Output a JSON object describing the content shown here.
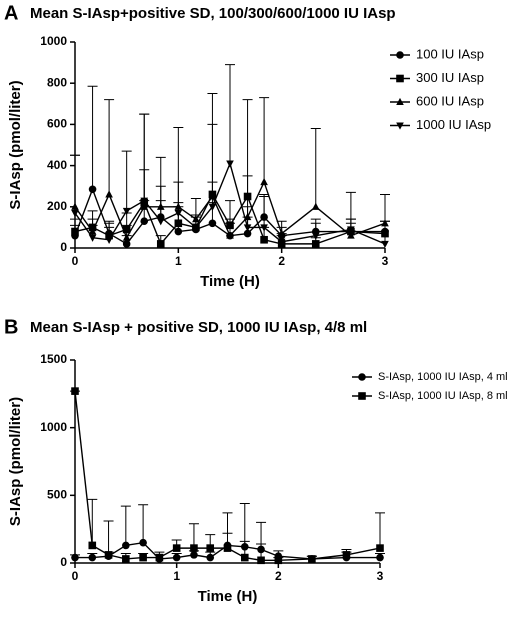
{
  "chart_data": [
    {
      "type": "line",
      "panel_label": "A",
      "title": "Mean S-IAsp+positive SD, 100/300/600/1000 IU IAsp",
      "x_label": "Time (H)",
      "y_label": "S-IAsp (pmol/liter)",
      "x": [
        0,
        0.17,
        0.33,
        0.5,
        0.67,
        0.83,
        1,
        1.17,
        1.33,
        1.5,
        1.67,
        1.83,
        2,
        2.33,
        2.67,
        3
      ],
      "xlim": [
        0,
        3
      ],
      "xticks": [
        0,
        1,
        2,
        3
      ],
      "ylim": [
        0,
        1000
      ],
      "yticks": [
        0,
        200,
        400,
        600,
        800,
        1000
      ],
      "series": [
        {
          "name": "100 IU IAsp",
          "color": "#000000",
          "marker": "circle",
          "values": [
            60,
            285,
            70,
            20,
            130,
            150,
            80,
            90,
            120,
            60,
            70,
            150,
            60,
            80,
            80,
            80
          ],
          "errors": [
            50,
            500,
            60,
            40,
            100,
            150,
            120,
            60,
            100,
            60,
            80,
            100,
            40,
            60,
            60,
            50
          ]
        },
        {
          "name": "300 IU IAsp",
          "color": "#000000",
          "marker": "square",
          "values": [
            80,
            100,
            60,
            90,
            220,
            20,
            120,
            100,
            260,
            110,
            250,
            40,
            20,
            20,
            80,
            70
          ],
          "errors": [
            60,
            80,
            60,
            80,
            430,
            40,
            100,
            60,
            490,
            120,
            470,
            60,
            40,
            30,
            60,
            60
          ]
        },
        {
          "name": "600 IU IAsp",
          "color": "#000000",
          "marker": "triangle",
          "values": [
            200,
            80,
            260,
            50,
            200,
            200,
            200,
            140,
            250,
            60,
            150,
            320,
            70,
            200,
            60,
            120
          ],
          "errors": [
            250,
            60,
            460,
            60,
            450,
            240,
            385,
            100,
            350,
            80,
            200,
            410,
            60,
            380,
            60,
            140
          ]
        },
        {
          "name": "1000 IU IAsp",
          "color": "#000000",
          "marker": "triangle-down",
          "values": [
            170,
            50,
            40,
            180,
            230,
            130,
            170,
            100,
            200,
            410,
            100,
            100,
            30,
            60,
            90,
            20
          ],
          "errors": [
            280,
            60,
            60,
            290,
            150,
            100,
            150,
            60,
            120,
            480,
            100,
            160,
            40,
            60,
            180,
            240
          ]
        }
      ]
    },
    {
      "type": "line",
      "panel_label": "B",
      "title": "Mean S-IAsp + positive SD, 1000 IU IAsp, 4/8 ml",
      "x_label": "Time (H)",
      "y_label": "S-IAsp (pmol/liter)",
      "x": [
        0,
        0.17,
        0.33,
        0.5,
        0.67,
        0.83,
        1,
        1.17,
        1.33,
        1.5,
        1.67,
        1.83,
        2,
        2.33,
        2.67,
        3
      ],
      "xlim": [
        0,
        3
      ],
      "xticks": [
        0,
        1,
        2,
        3
      ],
      "ylim": [
        0,
        1500
      ],
      "yticks": [
        0,
        500,
        1000,
        1500
      ],
      "series": [
        {
          "name": "S-IAsp, 1000 IU IAsp, 4 ml",
          "color": "#000000",
          "marker": "circle",
          "values": [
            40,
            40,
            50,
            130,
            150,
            30,
            40,
            60,
            40,
            130,
            120,
            100,
            50,
            30,
            40,
            40
          ],
          "errors": [
            20,
            30,
            30,
            290,
            280,
            30,
            30,
            30,
            40,
            240,
            320,
            40,
            40,
            20,
            40,
            30
          ]
        },
        {
          "name": "S-IAsp, 1000 IU IAsp, 8 ml",
          "color": "#000000",
          "marker": "square",
          "values": [
            1270,
            130,
            60,
            30,
            40,
            40,
            110,
            110,
            110,
            110,
            40,
            20,
            20,
            30,
            60,
            110
          ],
          "errors": [
            0,
            340,
            250,
            40,
            30,
            40,
            60,
            180,
            100,
            110,
            120,
            280,
            20,
            20,
            40,
            260
          ]
        }
      ]
    }
  ]
}
